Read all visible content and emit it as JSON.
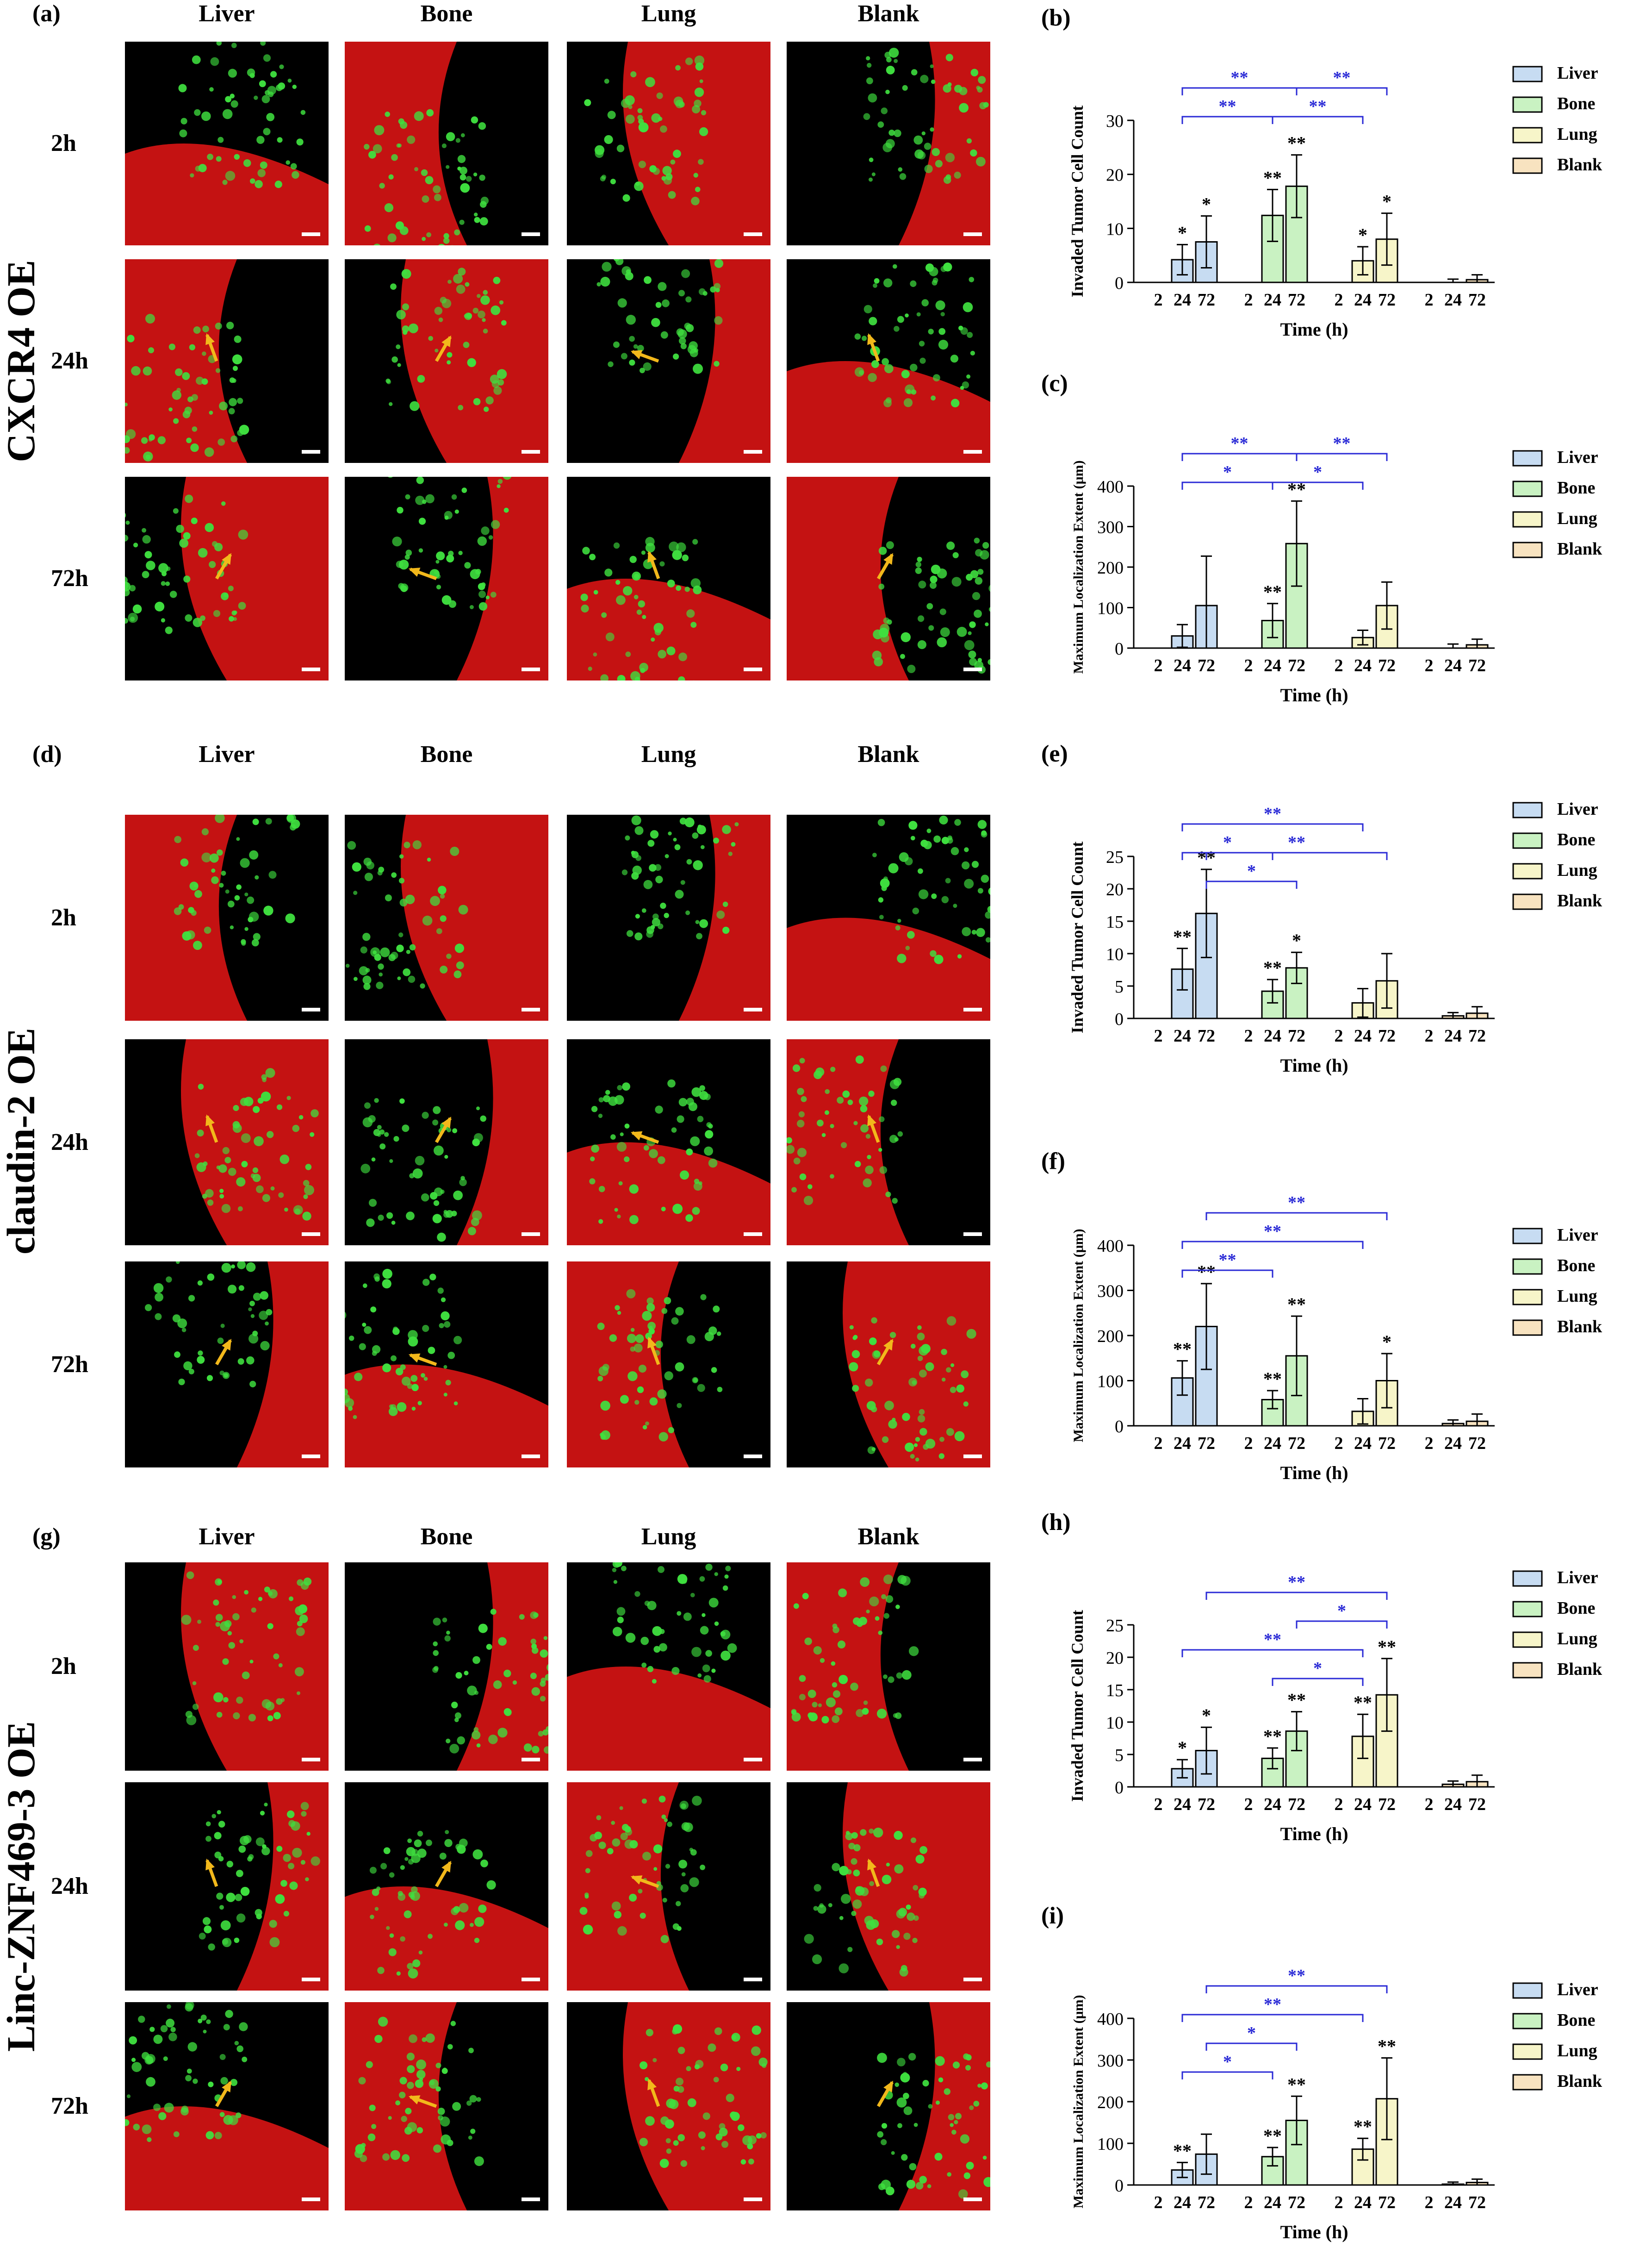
{
  "colors": {
    "liver": "#c7dcf2",
    "bone": "#c9f2c2",
    "lung": "#f7f5c9",
    "blank": "#f8e3c0",
    "sig": "#2a2ad6",
    "tissue": "#d91414",
    "cells": "#3fe03f",
    "arrow": "#f2b81b"
  },
  "image_panels": [
    {
      "label": "(a)",
      "group": "CXCR4 OE",
      "columns": [
        "Liver",
        "Bone",
        "Lung",
        "Blank"
      ],
      "rows": [
        "2h",
        "24h",
        "72h"
      ]
    },
    {
      "label": "(d)",
      "group": "claudin-2 OE",
      "columns": [
        "Liver",
        "Bone",
        "Lung",
        "Blank"
      ],
      "rows": [
        "2h",
        "24h",
        "72h"
      ]
    },
    {
      "label": "(g)",
      "group": "Linc-ZNF469-3 OE",
      "columns": [
        "Liver",
        "Bone",
        "Lung",
        "Blank"
      ],
      "rows": [
        "2h",
        "24h",
        "72h"
      ]
    }
  ],
  "chart_data": [
    {
      "panel": "(b)",
      "type": "bar",
      "ylabel": "Invaded Tumor Cell Count",
      "xlabel": "Time (h)",
      "ylim": [
        0,
        30
      ],
      "yticks": [
        0,
        10,
        20,
        30
      ],
      "categories": [
        "2",
        "24",
        "72"
      ],
      "legend": [
        "Liver",
        "Bone",
        "Lung",
        "Blank"
      ],
      "series": [
        {
          "name": "Liver",
          "values": [
            0,
            4.2,
            7.5
          ],
          "err": [
            0,
            2.8,
            4.8
          ],
          "stars": [
            "",
            "*",
            "*"
          ]
        },
        {
          "name": "Bone",
          "values": [
            0,
            12.4,
            17.8
          ],
          "err": [
            0,
            4.8,
            5.8
          ],
          "stars": [
            "",
            "**",
            "**"
          ]
        },
        {
          "name": "Lung",
          "values": [
            0,
            4.0,
            8.0
          ],
          "err": [
            0,
            2.6,
            4.8
          ],
          "stars": [
            "",
            "*",
            "*"
          ]
        },
        {
          "name": "Blank",
          "values": [
            0,
            0,
            0.5
          ],
          "err": [
            0,
            0.6,
            0.9
          ],
          "stars": [
            "",
            "",
            ""
          ]
        }
      ],
      "brackets": [
        {
          "from": [
            0,
            1
          ],
          "to": [
            1,
            2
          ],
          "level": 0,
          "label": "**"
        },
        {
          "from": [
            1,
            2
          ],
          "to": [
            2,
            2
          ],
          "level": 0,
          "label": "**"
        },
        {
          "from": [
            0,
            1
          ],
          "to": [
            1,
            1
          ],
          "level": 1,
          "label": "**"
        },
        {
          "from": [
            1,
            1
          ],
          "to": [
            2,
            1
          ],
          "level": 1,
          "label": "**"
        }
      ]
    },
    {
      "panel": "(c)",
      "type": "bar",
      "ylabel": "Maximum Localization Extent (μm)",
      "xlabel": "Time (h)",
      "ylim": [
        0,
        400
      ],
      "yticks": [
        0,
        100,
        200,
        300,
        400
      ],
      "categories": [
        "2",
        "24",
        "72"
      ],
      "legend": [
        "Liver",
        "Bone",
        "Lung",
        "Blank"
      ],
      "series": [
        {
          "name": "Liver",
          "values": [
            0,
            30,
            105
          ],
          "err": [
            0,
            28,
            122
          ],
          "stars": [
            "",
            "",
            ""
          ]
        },
        {
          "name": "Bone",
          "values": [
            0,
            68,
            258
          ],
          "err": [
            0,
            42,
            105
          ],
          "stars": [
            "",
            "**",
            "**"
          ]
        },
        {
          "name": "Lung",
          "values": [
            0,
            26,
            105
          ],
          "err": [
            0,
            18,
            58
          ],
          "stars": [
            "",
            "",
            ""
          ]
        },
        {
          "name": "Blank",
          "values": [
            0,
            0,
            8
          ],
          "err": [
            0,
            10,
            14
          ],
          "stars": [
            "",
            "",
            ""
          ]
        }
      ],
      "brackets": [
        {
          "from": [
            0,
            1
          ],
          "to": [
            1,
            2
          ],
          "level": 0,
          "label": "**"
        },
        {
          "from": [
            1,
            2
          ],
          "to": [
            2,
            2
          ],
          "level": 0,
          "label": "**"
        },
        {
          "from": [
            0,
            1
          ],
          "to": [
            1,
            1
          ],
          "level": 1,
          "label": "*"
        },
        {
          "from": [
            1,
            1
          ],
          "to": [
            2,
            1
          ],
          "level": 1,
          "label": "*"
        }
      ]
    },
    {
      "panel": "(e)",
      "type": "bar",
      "ylabel": "Invaded Tumor Cell Count",
      "xlabel": "Time (h)",
      "ylim": [
        0,
        25
      ],
      "yticks": [
        0,
        5,
        10,
        15,
        20,
        25
      ],
      "categories": [
        "2",
        "24",
        "72"
      ],
      "legend": [
        "Liver",
        "Bone",
        "Lung",
        "Blank"
      ],
      "series": [
        {
          "name": "Liver",
          "values": [
            0,
            7.6,
            16.2
          ],
          "err": [
            0,
            3.2,
            6.8
          ],
          "stars": [
            "",
            "**",
            "**"
          ]
        },
        {
          "name": "Bone",
          "values": [
            0,
            4.2,
            7.8
          ],
          "err": [
            0,
            1.8,
            2.4
          ],
          "stars": [
            "",
            "**",
            "*"
          ]
        },
        {
          "name": "Lung",
          "values": [
            0,
            2.4,
            5.8
          ],
          "err": [
            0,
            2.2,
            4.2
          ],
          "stars": [
            "",
            "",
            ""
          ]
        },
        {
          "name": "Blank",
          "values": [
            0,
            0.4,
            0.8
          ],
          "err": [
            0,
            0.5,
            1.0
          ],
          "stars": [
            "",
            "",
            ""
          ]
        }
      ],
      "brackets": [
        {
          "from": [
            0,
            1
          ],
          "to": [
            2,
            1
          ],
          "level": 0,
          "label": "**"
        },
        {
          "from": [
            0,
            1
          ],
          "to": [
            1,
            1
          ],
          "level": 1,
          "label": "*"
        },
        {
          "from": [
            0,
            2
          ],
          "to": [
            2,
            2
          ],
          "level": 1,
          "label": "**"
        },
        {
          "from": [
            0,
            2
          ],
          "to": [
            1,
            2
          ],
          "level": 2,
          "label": "*"
        }
      ]
    },
    {
      "panel": "(f)",
      "type": "bar",
      "ylabel": "Maximum Localization Extent (μm)",
      "xlabel": "Time (h)",
      "ylim": [
        0,
        400
      ],
      "yticks": [
        0,
        100,
        200,
        300,
        400
      ],
      "categories": [
        "2",
        "24",
        "72"
      ],
      "legend": [
        "Liver",
        "Bone",
        "Lung",
        "Blank"
      ],
      "series": [
        {
          "name": "Liver",
          "values": [
            0,
            106,
            220
          ],
          "err": [
            0,
            38,
            95
          ],
          "stars": [
            "",
            "**",
            "**"
          ]
        },
        {
          "name": "Bone",
          "values": [
            0,
            58,
            155
          ],
          "err": [
            0,
            20,
            88
          ],
          "stars": [
            "",
            "**",
            "**"
          ]
        },
        {
          "name": "Lung",
          "values": [
            0,
            32,
            100
          ],
          "err": [
            0,
            28,
            60
          ],
          "stars": [
            "",
            "",
            "*"
          ]
        },
        {
          "name": "Blank",
          "values": [
            0,
            5,
            10
          ],
          "err": [
            0,
            8,
            16
          ],
          "stars": [
            "",
            "",
            ""
          ]
        }
      ],
      "brackets": [
        {
          "from": [
            0,
            2
          ],
          "to": [
            2,
            2
          ],
          "level": 0,
          "label": "**"
        },
        {
          "from": [
            0,
            1
          ],
          "to": [
            2,
            1
          ],
          "level": 1,
          "label": "**"
        },
        {
          "from": [
            0,
            1
          ],
          "to": [
            1,
            1
          ],
          "level": 2,
          "label": "**"
        }
      ]
    },
    {
      "panel": "(h)",
      "type": "bar",
      "ylabel": "Invaded Tumor Cell Count",
      "xlabel": "Time (h)",
      "ylim": [
        0,
        25
      ],
      "yticks": [
        0,
        5,
        10,
        15,
        20,
        25
      ],
      "categories": [
        "2",
        "24",
        "72"
      ],
      "legend": [
        "Liver",
        "Bone",
        "Lung",
        "Blank"
      ],
      "series": [
        {
          "name": "Liver",
          "values": [
            0,
            2.8,
            5.6
          ],
          "err": [
            0,
            1.4,
            3.6
          ],
          "stars": [
            "",
            "*",
            "*"
          ]
        },
        {
          "name": "Bone",
          "values": [
            0,
            4.4,
            8.6
          ],
          "err": [
            0,
            1.6,
            3.0
          ],
          "stars": [
            "",
            "**",
            "**"
          ]
        },
        {
          "name": "Lung",
          "values": [
            0,
            7.8,
            14.2
          ],
          "err": [
            0,
            3.4,
            5.6
          ],
          "stars": [
            "",
            "**",
            "**"
          ]
        },
        {
          "name": "Blank",
          "values": [
            0,
            0.4,
            0.8
          ],
          "err": [
            0,
            0.5,
            1.0
          ],
          "stars": [
            "",
            "",
            ""
          ]
        }
      ],
      "brackets": [
        {
          "from": [
            0,
            2
          ],
          "to": [
            2,
            2
          ],
          "level": 0,
          "label": "**"
        },
        {
          "from": [
            1,
            2
          ],
          "to": [
            2,
            2
          ],
          "level": 1,
          "label": "*"
        },
        {
          "from": [
            0,
            1
          ],
          "to": [
            2,
            1
          ],
          "level": 2,
          "label": "**"
        },
        {
          "from": [
            1,
            1
          ],
          "to": [
            2,
            1
          ],
          "level": 3,
          "label": "*"
        }
      ]
    },
    {
      "panel": "(i)",
      "type": "bar",
      "ylabel": "Maximum Localization Extent (μm)",
      "xlabel": "Time (h)",
      "ylim": [
        0,
        400
      ],
      "yticks": [
        0,
        100,
        200,
        300,
        400
      ],
      "categories": [
        "2",
        "24",
        "72"
      ],
      "legend": [
        "Liver",
        "Bone",
        "Lung",
        "Blank"
      ],
      "series": [
        {
          "name": "Liver",
          "values": [
            0,
            36,
            74
          ],
          "err": [
            0,
            18,
            48
          ],
          "stars": [
            "",
            "**",
            ""
          ]
        },
        {
          "name": "Bone",
          "values": [
            0,
            68,
            155
          ],
          "err": [
            0,
            22,
            58
          ],
          "stars": [
            "",
            "**",
            "**"
          ]
        },
        {
          "name": "Lung",
          "values": [
            0,
            86,
            207
          ],
          "err": [
            0,
            26,
            98
          ],
          "stars": [
            "",
            "**",
            "**"
          ]
        },
        {
          "name": "Blank",
          "values": [
            0,
            2,
            6
          ],
          "err": [
            0,
            5,
            8
          ],
          "stars": [
            "",
            "",
            ""
          ]
        }
      ],
      "brackets": [
        {
          "from": [
            0,
            2
          ],
          "to": [
            2,
            2
          ],
          "level": 0,
          "label": "**"
        },
        {
          "from": [
            0,
            1
          ],
          "to": [
            2,
            1
          ],
          "level": 1,
          "label": "**"
        },
        {
          "from": [
            0,
            2
          ],
          "to": [
            1,
            2
          ],
          "level": 2,
          "label": "*"
        },
        {
          "from": [
            0,
            1
          ],
          "to": [
            1,
            1
          ],
          "level": 3,
          "label": "*"
        }
      ]
    }
  ]
}
